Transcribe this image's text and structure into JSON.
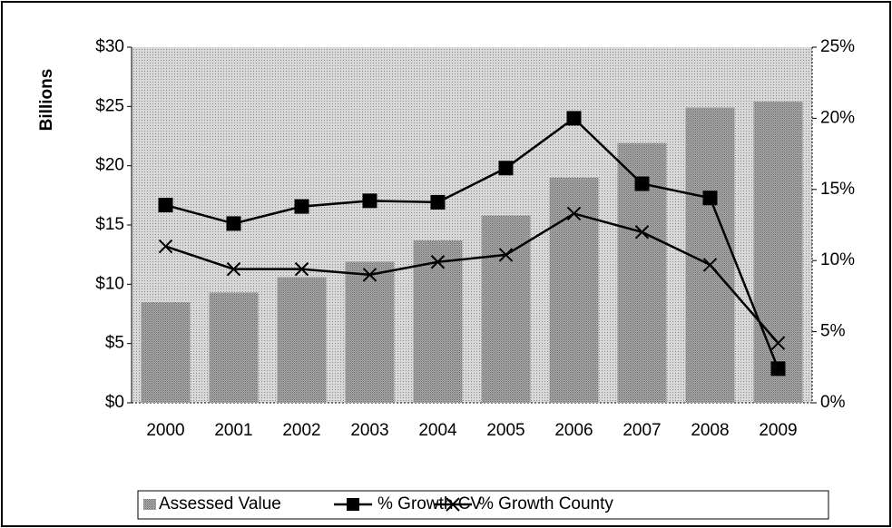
{
  "chart_data": {
    "type": "bar",
    "y_label": "Billions",
    "categories": [
      "2000",
      "2001",
      "2002",
      "2003",
      "2004",
      "2005",
      "2006",
      "2007",
      "2008",
      "2009"
    ],
    "series": [
      {
        "name": "Assessed Value",
        "type": "bar",
        "color": "#a8a8a8",
        "values": [
          8.5,
          9.3,
          10.6,
          11.9,
          13.7,
          15.8,
          19.0,
          21.9,
          24.9,
          25.4
        ]
      },
      {
        "name": "% Growth CV",
        "type": "line",
        "marker": "square",
        "axis": "y2",
        "color": "#000000",
        "values": [
          13.9,
          12.6,
          13.8,
          14.2,
          14.1,
          16.5,
          20.0,
          15.4,
          14.4,
          2.4
        ]
      },
      {
        "name": "% Growth County",
        "type": "line",
        "marker": "x",
        "axis": "y2",
        "color": "#000000",
        "values": [
          11.0,
          9.4,
          9.4,
          9.0,
          9.9,
          10.4,
          13.3,
          12.0,
          9.7,
          4.2
        ]
      }
    ],
    "ylim": [
      0,
      30
    ],
    "yticks": [
      {
        "value": 0,
        "label": "$0"
      },
      {
        "value": 5,
        "label": "$5"
      },
      {
        "value": 10,
        "label": "$10"
      },
      {
        "value": 15,
        "label": "$15"
      },
      {
        "value": 20,
        "label": "$20"
      },
      {
        "value": 25,
        "label": "$25"
      },
      {
        "value": 30,
        "label": "$30"
      }
    ],
    "y2lim": [
      0,
      25
    ],
    "y2ticks": [
      {
        "value": 0,
        "label": "0%"
      },
      {
        "value": 5,
        "label": "5%"
      },
      {
        "value": 10,
        "label": "10%"
      },
      {
        "value": 15,
        "label": "15%"
      },
      {
        "value": 20,
        "label": "20%"
      },
      {
        "value": 25,
        "label": "25%"
      }
    ],
    "legend": "bottom"
  }
}
